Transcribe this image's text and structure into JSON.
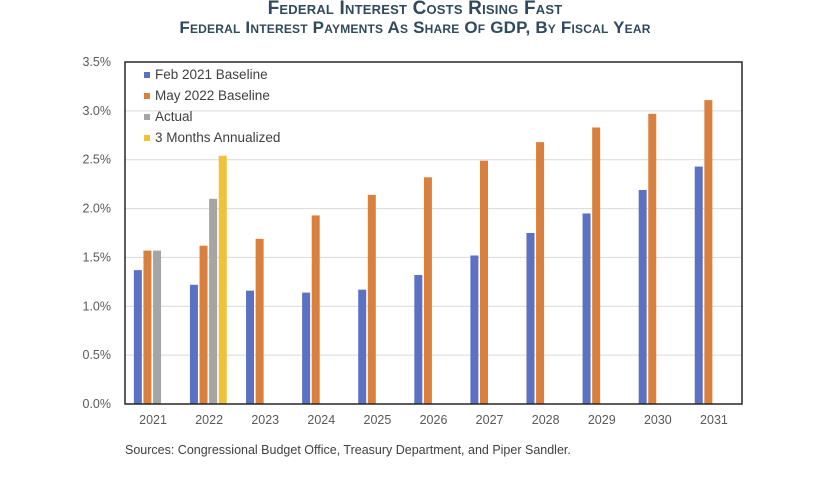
{
  "chart_data": {
    "type": "bar",
    "title": "Federal Interest Costs Rising Fast",
    "subtitle": "Federal Interest Payments As Share Of GDP, By Fiscal Year",
    "xlabel": "",
    "ylabel": "",
    "categories": [
      "2021",
      "2022",
      "2023",
      "2024",
      "2025",
      "2026",
      "2027",
      "2028",
      "2029",
      "2030",
      "2031"
    ],
    "ylim": [
      0,
      3.5
    ],
    "yticks": [
      0,
      0.5,
      1.0,
      1.5,
      2.0,
      2.5,
      3.0,
      3.5
    ],
    "ytick_labels": [
      "0.0%",
      "0.5%",
      "1.0%",
      "1.5%",
      "2.0%",
      "2.5%",
      "3.0%",
      "3.5%"
    ],
    "grid": true,
    "legend_position": "top-left",
    "series": [
      {
        "name": "Feb 2021 Baseline",
        "color": "#5b72c2",
        "values": [
          1.37,
          1.22,
          1.16,
          1.14,
          1.17,
          1.32,
          1.52,
          1.75,
          1.95,
          2.19,
          2.43
        ]
      },
      {
        "name": "May 2022 Baseline",
        "color": "#d9803f",
        "values": [
          1.57,
          1.62,
          1.69,
          1.93,
          2.14,
          2.32,
          2.49,
          2.68,
          2.83,
          2.97,
          3.11
        ]
      },
      {
        "name": "Actual",
        "color": "#a5a5a5",
        "values": [
          1.57,
          2.1,
          null,
          null,
          null,
          null,
          null,
          null,
          null,
          null,
          null
        ]
      },
      {
        "name": "3 Months Annualized",
        "color": "#efc23a",
        "values": [
          null,
          2.54,
          null,
          null,
          null,
          null,
          null,
          null,
          null,
          null,
          null
        ]
      }
    ],
    "source": "Sources: Congressional Budget Office, Treasury Department, and Piper Sandler."
  }
}
